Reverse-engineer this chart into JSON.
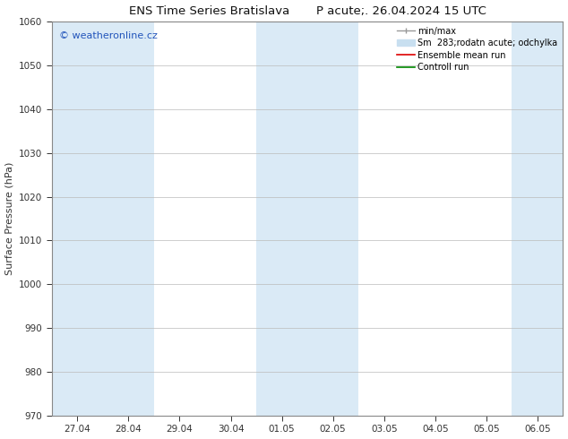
{
  "title": "ENS Time Series Bratislava       P acute;. 26.04.2024 15 UTC",
  "ylabel": "Surface Pressure (hPa)",
  "ylim": [
    970,
    1060
  ],
  "yticks": [
    970,
    980,
    990,
    1000,
    1010,
    1020,
    1030,
    1040,
    1050,
    1060
  ],
  "xtick_labels": [
    "27.04",
    "28.04",
    "29.04",
    "30.04",
    "01.05",
    "02.05",
    "03.05",
    "04.05",
    "05.05",
    "06.05"
  ],
  "n_xticks": 10,
  "shade_indices": [
    0,
    1,
    4,
    5,
    9
  ],
  "shade_color": "#daeaf6",
  "watermark": "© weatheronline.cz",
  "watermark_color": "#2255bb",
  "legend_items": [
    {
      "label": "min/max",
      "color": "#999999",
      "lw": 1.0,
      "style": "minmax"
    },
    {
      "label": "Sm  283;rodatn acute; odchylka",
      "color": "#c8dff0",
      "lw": 6,
      "style": "fill"
    },
    {
      "label": "Ensemble mean run",
      "color": "#dd0000",
      "lw": 1.2,
      "style": "line"
    },
    {
      "label": "Controll run",
      "color": "#008800",
      "lw": 1.2,
      "style": "line"
    }
  ],
  "bg_color": "#ffffff",
  "grid_color": "#bbbbbb",
  "spine_color": "#888888",
  "tick_color": "#333333",
  "title_fontsize": 9.5,
  "label_fontsize": 8,
  "tick_fontsize": 7.5,
  "legend_fontsize": 7
}
